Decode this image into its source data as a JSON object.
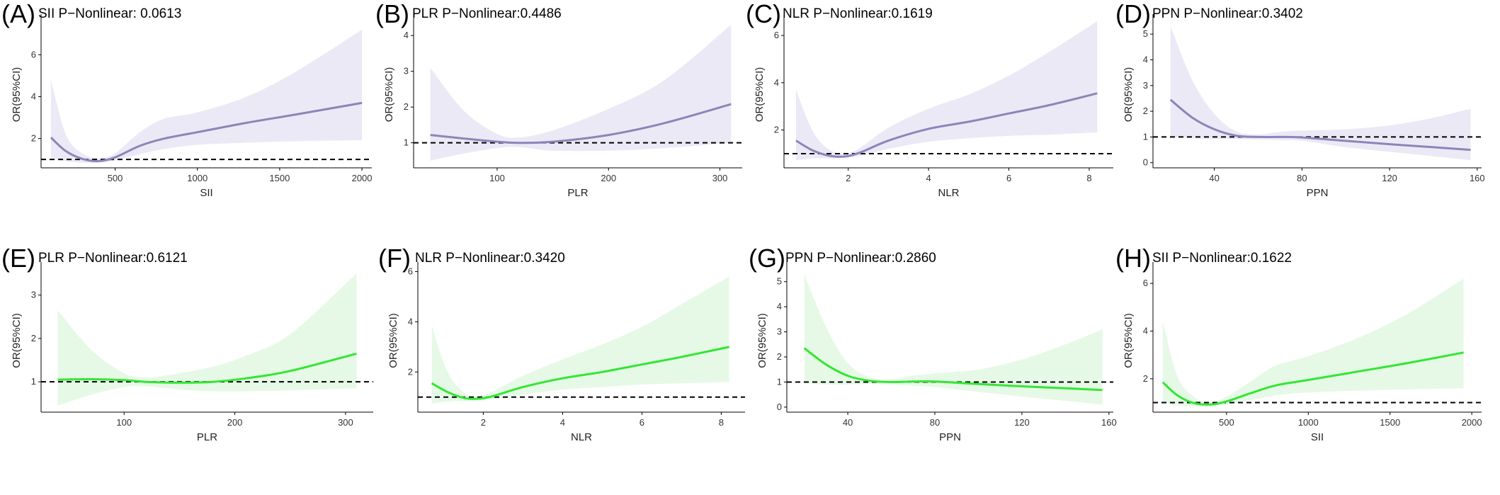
{
  "chart_data": [
    {
      "id": "A",
      "letter": "(A)",
      "title": "SII P−Nonlinear: 0.0613",
      "type": "line",
      "color": "#8e84b8",
      "band_color": "#ece9f6",
      "xlabel": "SII",
      "ylabel": "OR(95%CI)",
      "xlim": [
        50,
        2060
      ],
      "ylim": [
        0.6,
        7.6
      ],
      "xticks": [
        500,
        1000,
        1500,
        2000
      ],
      "yticks": [
        2,
        4,
        6
      ],
      "reference_y": 1,
      "x": [
        110,
        200,
        300,
        400,
        500,
        650,
        800,
        1000,
        1300,
        1600,
        2000
      ],
      "y": [
        2.05,
        1.4,
        1.03,
        0.92,
        1.1,
        1.65,
        2.0,
        2.3,
        2.75,
        3.15,
        3.7
      ],
      "lower": [
        1.1,
        0.92,
        0.85,
        0.85,
        0.95,
        1.25,
        1.5,
        1.7,
        1.8,
        1.87,
        1.92
      ],
      "upper": [
        4.8,
        2.2,
        1.3,
        1.05,
        1.3,
        2.3,
        2.95,
        3.25,
        4.0,
        5.2,
        7.2
      ]
    },
    {
      "id": "B",
      "letter": "(B)",
      "title": "PLR P−Nonlinear:0.4486",
      "type": "line",
      "color": "#8e84b8",
      "band_color": "#ece9f6",
      "xlabel": "PLR",
      "ylabel": "OR(95%CI)",
      "xlim": [
        25,
        320
      ],
      "ylim": [
        0.3,
        4.4
      ],
      "xticks": [
        100,
        200,
        300
      ],
      "yticks": [
        1,
        2,
        3,
        4
      ],
      "reference_y": 1,
      "x": [
        40,
        70,
        100,
        120,
        150,
        200,
        250,
        310
      ],
      "y": [
        1.22,
        1.12,
        1.03,
        1.0,
        1.03,
        1.22,
        1.55,
        2.08
      ],
      "lower": [
        0.5,
        0.7,
        0.85,
        0.88,
        0.78,
        0.78,
        0.85,
        1.0
      ],
      "upper": [
        3.1,
        1.9,
        1.25,
        1.15,
        1.35,
        1.95,
        2.75,
        4.3
      ]
    },
    {
      "id": "C",
      "letter": "(C)",
      "title": "NLR P−Nonlinear:0.1619",
      "type": "line",
      "color": "#8e84b8",
      "band_color": "#ece9f6",
      "xlabel": "NLR",
      "ylabel": "OR(95%CI)",
      "xlim": [
        0.4,
        8.6
      ],
      "ylim": [
        0.4,
        6.6
      ],
      "xticks": [
        2,
        4,
        6,
        8
      ],
      "yticks": [
        2,
        4,
        6
      ],
      "reference_y": 1,
      "x": [
        0.7,
        1.1,
        1.5,
        1.9,
        2.3,
        3,
        4,
        5,
        6,
        7,
        8.2
      ],
      "y": [
        1.55,
        1.15,
        0.92,
        0.88,
        1.05,
        1.55,
        2.05,
        2.35,
        2.7,
        3.05,
        3.55
      ],
      "lower": [
        0.72,
        0.8,
        0.8,
        0.82,
        0.9,
        1.2,
        1.5,
        1.65,
        1.75,
        1.8,
        1.9
      ],
      "upper": [
        3.7,
        2.0,
        1.2,
        1.0,
        1.25,
        2.1,
        2.9,
        3.5,
        4.3,
        5.3,
        6.6
      ]
    },
    {
      "id": "D",
      "letter": "(D)",
      "title": "PPN P−Nonlinear:0.3402",
      "type": "line",
      "color": "#8e84b8",
      "band_color": "#ece9f6",
      "xlabel": "PPN",
      "ylabel": "OR(95%CI)",
      "xlim": [
        12,
        162
      ],
      "ylim": [
        -0.2,
        5.5
      ],
      "xticks": [
        40,
        80,
        120,
        160
      ],
      "yticks": [
        0,
        1,
        2,
        3,
        4,
        5
      ],
      "reference_y": 1,
      "x": [
        20,
        30,
        40,
        50,
        60,
        70,
        80,
        100,
        120,
        140,
        157
      ],
      "y": [
        2.45,
        1.75,
        1.3,
        1.05,
        1.0,
        1.0,
        0.98,
        0.85,
        0.72,
        0.6,
        0.5
      ],
      "lower": [
        1.0,
        0.95,
        0.92,
        0.92,
        0.9,
        0.88,
        0.85,
        0.6,
        0.42,
        0.25,
        0.1
      ],
      "upper": [
        5.3,
        3.2,
        1.9,
        1.22,
        1.1,
        1.2,
        1.25,
        1.3,
        1.45,
        1.75,
        2.1
      ]
    },
    {
      "id": "E",
      "letter": "(E)",
      "title": "PLR P−Nonlinear:0.6121",
      "type": "line",
      "color": "#33e633",
      "band_color": "#e6f9e6",
      "xlabel": "PLR",
      "ylabel": "OR(95%CI)",
      "xlim": [
        25,
        325
      ],
      "ylim": [
        0.3,
        3.6
      ],
      "xticks": [
        100,
        200,
        300
      ],
      "yticks": [
        1,
        2,
        3
      ],
      "reference_y": 1,
      "x": [
        40,
        70,
        100,
        120,
        150,
        180,
        210,
        250,
        310
      ],
      "y": [
        1.05,
        1.06,
        1.04,
        1.0,
        0.98,
        1.0,
        1.08,
        1.25,
        1.65
      ],
      "lower": [
        0.45,
        0.7,
        0.88,
        0.9,
        0.82,
        0.78,
        0.78,
        0.8,
        0.85
      ],
      "upper": [
        2.65,
        1.75,
        1.2,
        1.1,
        1.2,
        1.35,
        1.6,
        2.1,
        3.5
      ]
    },
    {
      "id": "F",
      "letter": "(F)",
      "title": "NLR P−Nonlinear:0.3420",
      "type": "line",
      "color": "#33e633",
      "band_color": "#e6f9e6",
      "xlabel": "NLR",
      "ylabel": "OR(95%CI)",
      "xlim": [
        0.35,
        8.6
      ],
      "ylim": [
        0.4,
        6.1
      ],
      "xticks": [
        2,
        4,
        6,
        8
      ],
      "yticks": [
        2,
        4,
        6
      ],
      "reference_y": 1,
      "x": [
        0.7,
        1.1,
        1.5,
        1.8,
        2.2,
        3,
        4,
        5,
        6,
        7,
        8.2
      ],
      "y": [
        1.55,
        1.2,
        0.97,
        0.93,
        1.02,
        1.4,
        1.75,
        2.0,
        2.3,
        2.6,
        3.0
      ],
      "lower": [
        0.75,
        0.82,
        0.85,
        0.86,
        0.9,
        1.1,
        1.3,
        1.4,
        1.5,
        1.55,
        1.6
      ],
      "upper": [
        3.85,
        2.0,
        1.2,
        1.02,
        1.2,
        1.85,
        2.5,
        3.1,
        3.8,
        4.7,
        5.8
      ]
    },
    {
      "id": "G",
      "letter": "(G)",
      "title": "PPN P−Nonlinear:0.2860",
      "type": "line",
      "color": "#33e633",
      "band_color": "#e6f9e6",
      "xlabel": "PPN",
      "ylabel": "OR(95%CI)",
      "xlim": [
        12,
        162
      ],
      "ylim": [
        -0.2,
        5.5
      ],
      "xticks": [
        40,
        80,
        120,
        160
      ],
      "yticks": [
        0,
        1,
        2,
        3,
        4,
        5
      ],
      "reference_y": 1,
      "x": [
        20,
        30,
        40,
        50,
        60,
        70,
        80,
        100,
        120,
        140,
        157
      ],
      "y": [
        2.35,
        1.7,
        1.25,
        1.05,
        1.0,
        1.02,
        1.02,
        0.92,
        0.83,
        0.75,
        0.68
      ],
      "lower": [
        0.95,
        0.9,
        0.9,
        0.92,
        0.9,
        0.85,
        0.8,
        0.6,
        0.42,
        0.25,
        0.1
      ],
      "upper": [
        5.3,
        3.2,
        1.75,
        1.2,
        1.12,
        1.25,
        1.35,
        1.5,
        1.9,
        2.5,
        3.1
      ]
    },
    {
      "id": "H",
      "letter": "(H)",
      "title": "SII P−Nonlinear:0.1622",
      "type": "line",
      "color": "#33e633",
      "band_color": "#e6f9e6",
      "xlabel": "SII",
      "ylabel": "OR(95%CI)",
      "xlim": [
        50,
        2060
      ],
      "ylim": [
        0.6,
        6.6
      ],
      "xticks": [
        500,
        1000,
        1500,
        2000
      ],
      "yticks": [
        2,
        4,
        6
      ],
      "reference_y": 1,
      "x": [
        110,
        200,
        300,
        400,
        500,
        650,
        800,
        1000,
        1300,
        1600,
        1950
      ],
      "y": [
        1.85,
        1.3,
        0.98,
        0.92,
        1.05,
        1.4,
        1.72,
        1.95,
        2.3,
        2.65,
        3.1
      ],
      "lower": [
        1.0,
        0.88,
        0.85,
        0.85,
        0.92,
        1.1,
        1.3,
        1.42,
        1.5,
        1.55,
        1.6
      ],
      "upper": [
        4.4,
        2.1,
        1.25,
        1.02,
        1.25,
        1.9,
        2.55,
        2.95,
        3.7,
        4.7,
        6.2
      ]
    }
  ]
}
